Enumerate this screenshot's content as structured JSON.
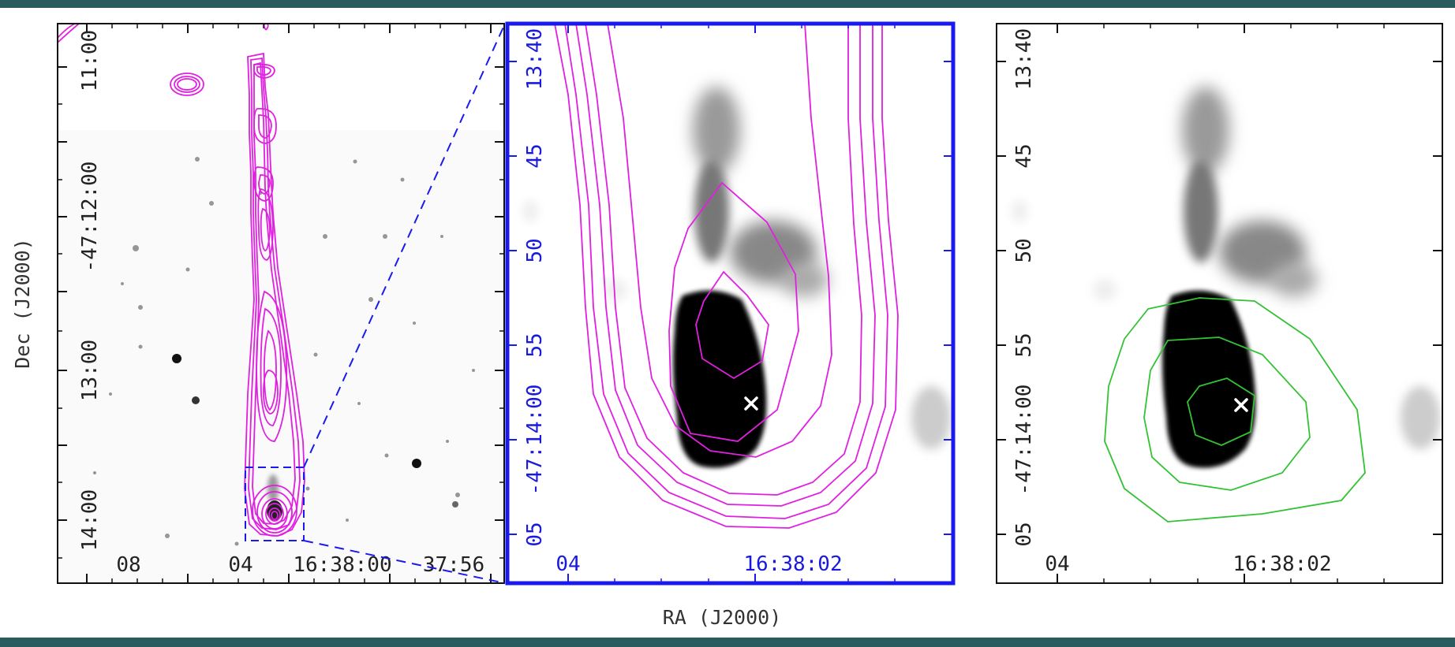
{
  "figure": {
    "x_axis_title": "RA (J2000)",
    "y_axis_title": "Dec (J2000)",
    "panel1": {
      "x_ticks": [
        "08",
        "04",
        "16:38:00",
        "37:56"
      ],
      "y_ticks": [
        "11:00",
        "-47:12:00",
        "13:00",
        "14:00"
      ]
    },
    "panel2": {
      "x_ticks": [
        "04",
        "16:38:02"
      ],
      "y_ticks": [
        "13:40",
        "45",
        "50",
        "55",
        "-47:14:00",
        "05"
      ]
    },
    "panel3": {
      "x_ticks": [
        "04",
        "16:38:02"
      ],
      "y_ticks": [
        "13:40",
        "45",
        "50",
        "55",
        "-47:14:00",
        "05"
      ]
    }
  },
  "colors": {
    "radio_contours": "#e020e0",
    "green_contours": "#33c233",
    "zoom_frame": "#1a1aee",
    "band": "#2a5c5f"
  }
}
